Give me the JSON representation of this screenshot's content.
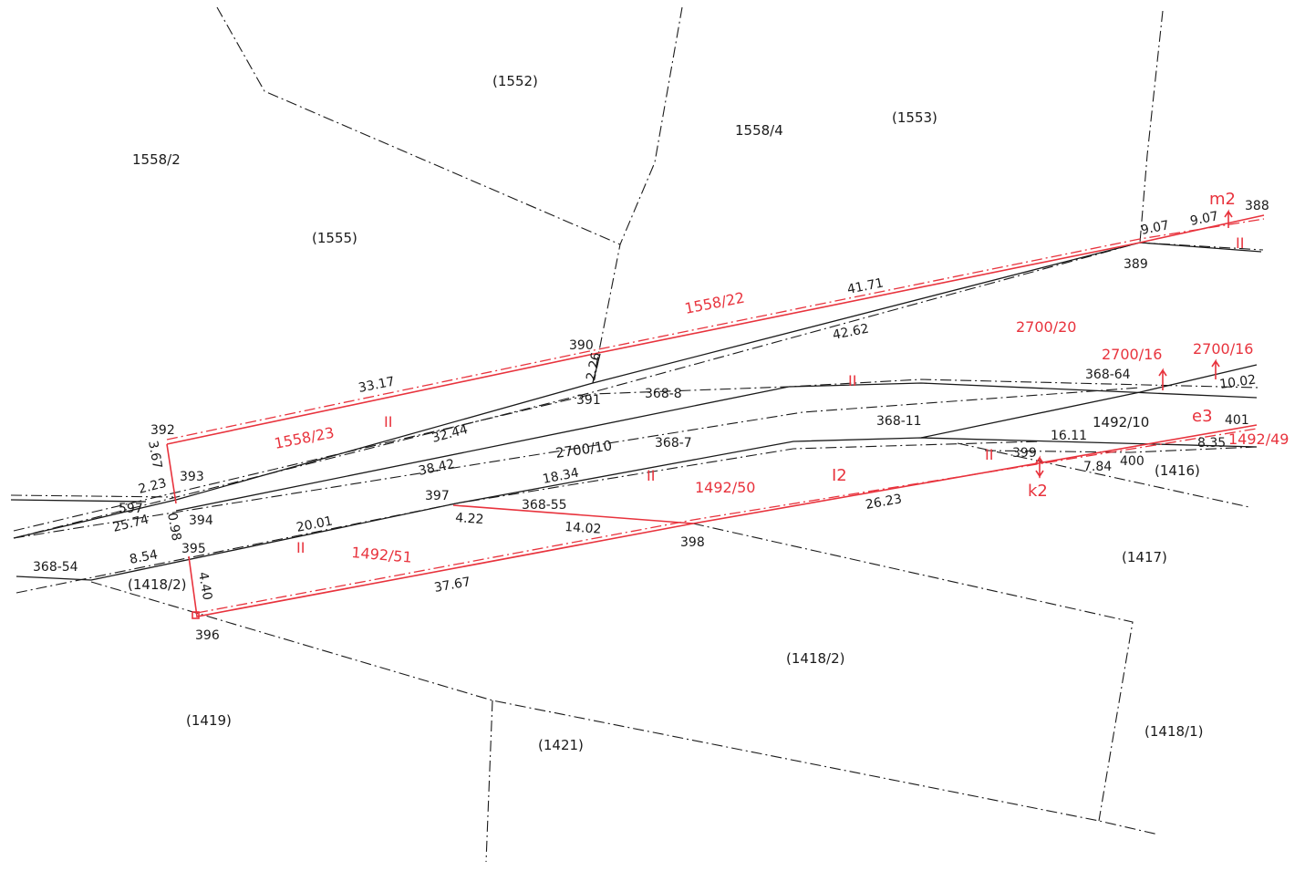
{
  "parcels_black": {
    "p1552": "(1552)",
    "p1553": "(1553)",
    "p1558_4": "1558/4",
    "p1558_2": "1558/2",
    "p1555": "(1555)",
    "p2700_10": "2700/10",
    "p1492_10": "1492/10",
    "p1416": "(1416)",
    "p1417": "(1417)",
    "p1418_2a": "(1418/2)",
    "p1418_2b": "(1418/2)",
    "p1418_1": "(1418/1)",
    "p1419": "(1419)",
    "p1421": "(1421)",
    "p368_54": "368-54",
    "p368_55": "368-55",
    "p368_7": "368-7",
    "p368_8": "368-8",
    "p368_11": "368-11",
    "p368_64": "368-64"
  },
  "parcels_red": {
    "p1558_22": "1558/22",
    "p1558_23": "1558/23",
    "p2700_20": "2700/20",
    "p2700_16a": "2700/16",
    "p2700_16b": "2700/16",
    "p1492_50": "1492/50",
    "p1492_51": "1492/51",
    "p1492_49": "1492/49",
    "m2": "m2",
    "e3": "e3",
    "k2": "k2",
    "i2": "I2"
  },
  "points": {
    "p388": "388",
    "p389": "389",
    "p390": "390",
    "p391": "391",
    "p392": "392",
    "p393": "393",
    "p394": "394",
    "p395": "395",
    "p396": "396",
    "p397": "397",
    "p398": "398",
    "p399": "399",
    "p400": "400",
    "p401": "401",
    "p597": "597"
  },
  "distances": {
    "d41_71": "41.71",
    "d42_62": "42.62",
    "d9_07a": "9.07",
    "d9_07b": "9.07",
    "d33_17": "33.17",
    "d32_44": "32.44",
    "d38_42": "38.42",
    "d2_26": "2.26",
    "d3_67": "3.67",
    "d2_23": "2.23",
    "d25_74": "25.74",
    "d0_98": "0.98",
    "d8_54": "8.54",
    "d4_40": "4.40",
    "d20_01": "20.01",
    "d18_34": "18.34",
    "d4_22": "4.22",
    "d14_02": "14.02",
    "d37_67": "37.67",
    "d26_23": "26.23",
    "d16_11": "16.11",
    "d7_84": "7.84",
    "d8_35": "8.35",
    "d10_02": "10.02"
  },
  "marks": {
    "par": "II"
  },
  "colors": {
    "black": "#1a1a1a",
    "red": "#e8333d"
  }
}
